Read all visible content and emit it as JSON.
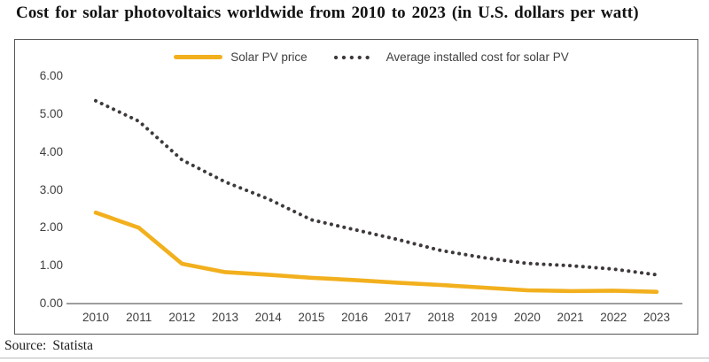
{
  "page": {
    "title": "Cost for solar photovoltaics worldwide from 2010 to 2023 (in U.S. dollars per watt)",
    "source_label": "Source:",
    "source_value": "Statista"
  },
  "colors": {
    "solar_pv_line": "#F2B01E",
    "installed_cost_dots": "#3F3A3A",
    "axis_text": "#404040",
    "axis_line": "#7F7F7F",
    "frame_border": "#565656",
    "title_text": "#121212"
  },
  "chart_data": {
    "type": "line",
    "title": "Cost for solar photovoltaics worldwide from 2010 to 2023 (in U.S. dollars per watt)",
    "categories": [
      "2010",
      "2011",
      "2012",
      "2013",
      "2014",
      "2015",
      "2016",
      "2017",
      "2018",
      "2019",
      "2020",
      "2021",
      "2022",
      "2023"
    ],
    "series": [
      {
        "name": "Solar PV price",
        "style": "solid",
        "color": "#F2B01E",
        "values": [
          2.4,
          2.0,
          1.05,
          0.83,
          0.76,
          0.68,
          0.62,
          0.55,
          0.49,
          0.42,
          0.35,
          0.33,
          0.34,
          0.31
        ]
      },
      {
        "name": "Average installed cost for solar PV",
        "style": "dotted",
        "color": "#3F3A3A",
        "values": [
          5.35,
          4.81,
          3.79,
          3.21,
          2.76,
          2.21,
          1.95,
          1.69,
          1.4,
          1.21,
          1.06,
          1.0,
          0.91,
          0.76
        ]
      }
    ],
    "xlabel": "",
    "ylabel": "",
    "ylim": [
      0,
      6
    ],
    "yticks": [
      "0.00",
      "1.00",
      "2.00",
      "3.00",
      "4.00",
      "5.00",
      "6.00"
    ],
    "grid": false,
    "legend_position": "top-center"
  }
}
